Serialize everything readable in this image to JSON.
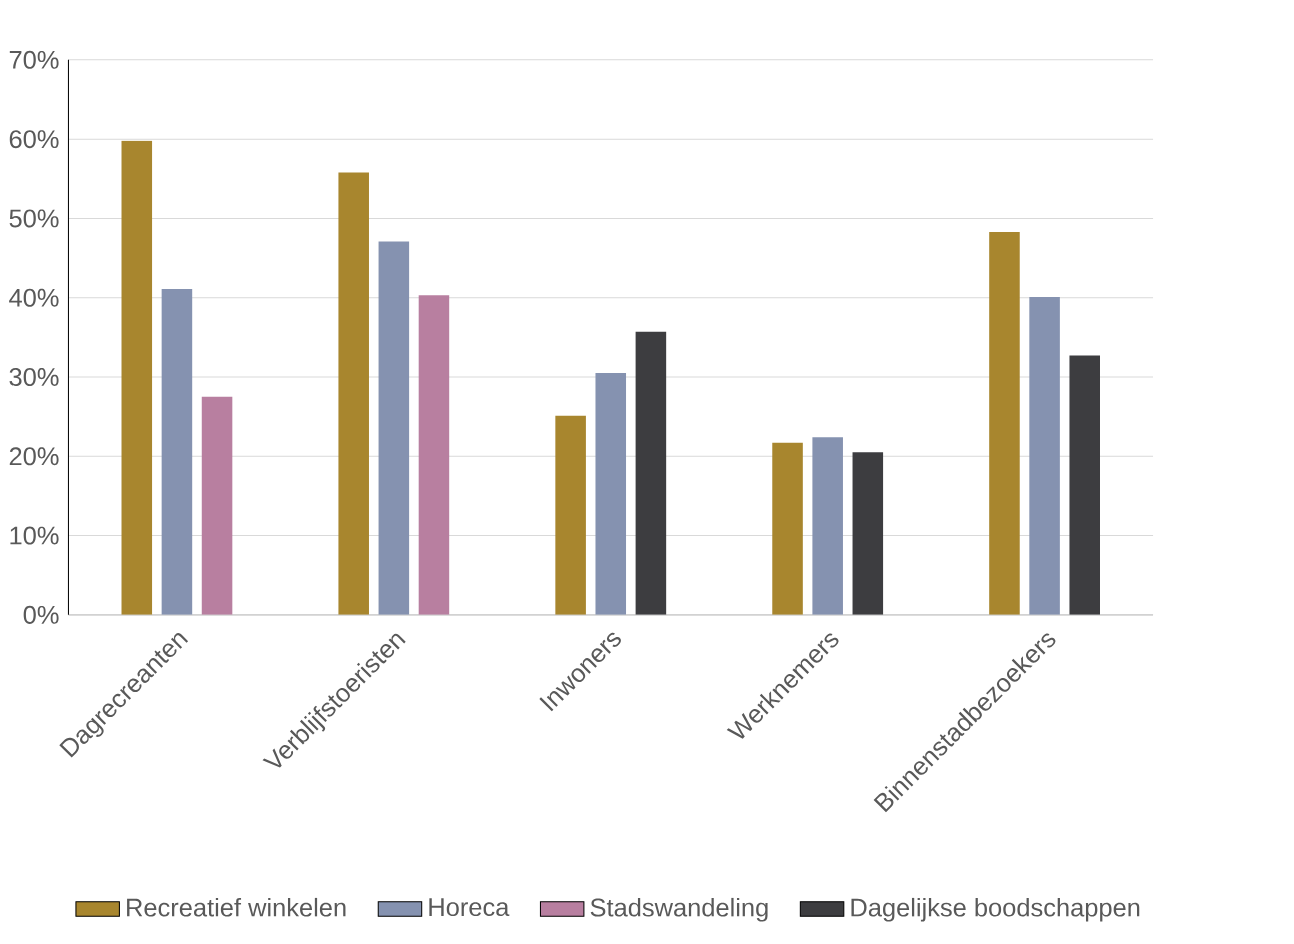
{
  "chart_data": {
    "type": "bar",
    "categories": [
      "Dagrecreanten",
      "Verblijfstoeristen",
      "Inwoners",
      "Werknemers",
      "Binnenstadbezoekers"
    ],
    "series": [
      {
        "name": "Recreatief winkelen",
        "color": "#a8862e",
        "values": [
          59.8,
          55.8,
          25.1,
          21.7,
          48.3
        ]
      },
      {
        "name": "Horeca",
        "color": "#8592b0",
        "values": [
          41.1,
          47.1,
          30.5,
          22.4,
          40.1
        ]
      },
      {
        "name": "Stadswandeling",
        "color": "#b87fa0",
        "values": [
          27.5,
          40.3,
          null,
          null,
          null
        ]
      },
      {
        "name": "Dagelijkse boodschappen",
        "color": "#3d3d40",
        "values": [
          null,
          null,
          35.7,
          20.5,
          32.7
        ]
      }
    ],
    "ylim": [
      0,
      70
    ],
    "yticks": [
      {
        "value": 0,
        "label": "0%"
      },
      {
        "value": 10,
        "label": "10%"
      },
      {
        "value": 20,
        "label": "20%"
      },
      {
        "value": 30,
        "label": "30%"
      },
      {
        "value": 40,
        "label": "40%"
      },
      {
        "value": 50,
        "label": "50%"
      },
      {
        "value": 60,
        "label": "60%"
      },
      {
        "value": 70,
        "label": "70%"
      }
    ],
    "grid": "y",
    "legend": "bottom"
  }
}
